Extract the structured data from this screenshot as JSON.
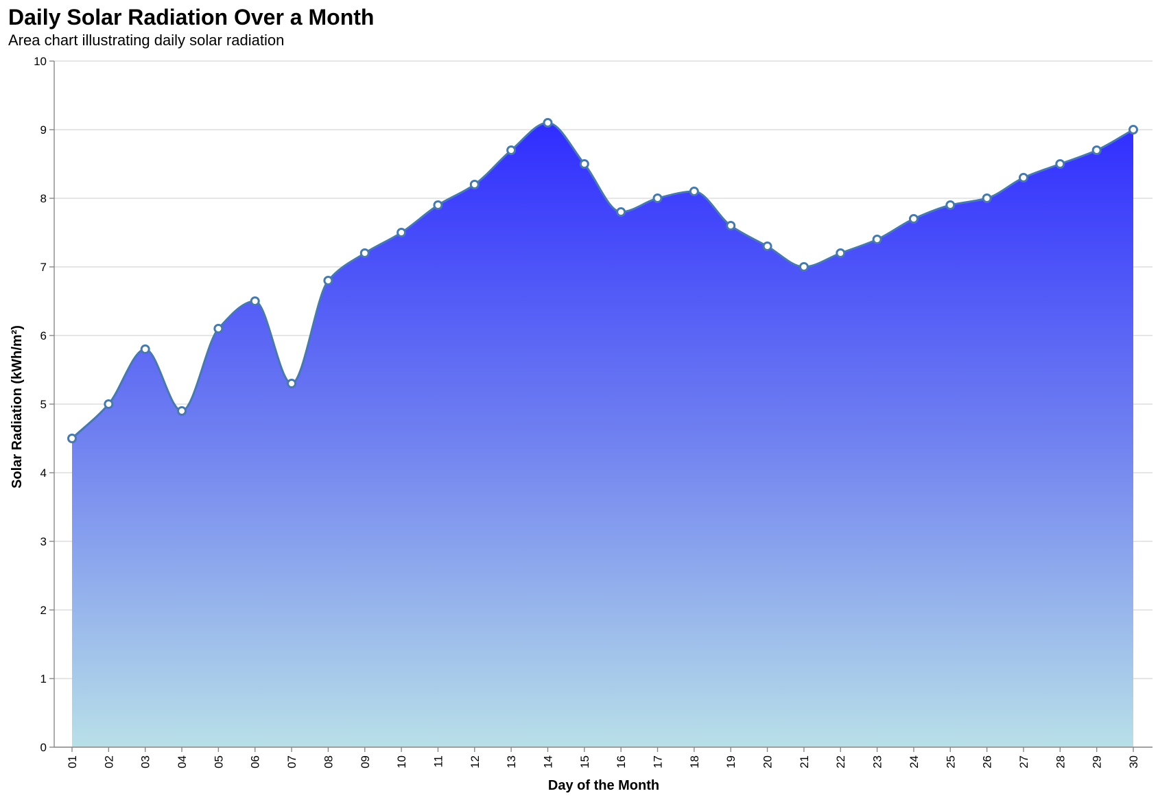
{
  "chart_data": {
    "type": "area",
    "title": "Daily Solar Radiation Over a Month",
    "subtitle": "Area chart illustrating daily solar radiation",
    "xlabel": "Day of the Month",
    "ylabel": "Solar Radiation (kWh/m²)",
    "ylim": [
      0,
      10
    ],
    "yticks": [
      "0",
      "1",
      "2",
      "3",
      "4",
      "5",
      "6",
      "7",
      "8",
      "9",
      "10"
    ],
    "grid": true,
    "interpolation": "monotone",
    "categories": [
      "01",
      "02",
      "03",
      "04",
      "05",
      "06",
      "07",
      "08",
      "09",
      "10",
      "11",
      "12",
      "13",
      "14",
      "15",
      "16",
      "17",
      "18",
      "19",
      "20",
      "21",
      "22",
      "23",
      "24",
      "25",
      "26",
      "27",
      "28",
      "29",
      "30"
    ],
    "values": [
      4.5,
      5.0,
      5.8,
      4.9,
      6.1,
      6.5,
      5.3,
      6.8,
      7.2,
      7.5,
      7.9,
      8.2,
      8.7,
      9.1,
      8.5,
      7.8,
      8.0,
      8.1,
      7.6,
      7.3,
      7.0,
      7.2,
      7.4,
      7.7,
      7.9,
      8.0,
      8.3,
      8.5,
      8.7,
      9.0
    ],
    "colors": {
      "fill_top": "#2f2dff",
      "fill_mid": "#6f80f0",
      "fill_bottom": "#b8e0e8",
      "line": "#4a79a8",
      "point_fill": "#ffffff",
      "point_stroke": "#4a79a8"
    }
  }
}
